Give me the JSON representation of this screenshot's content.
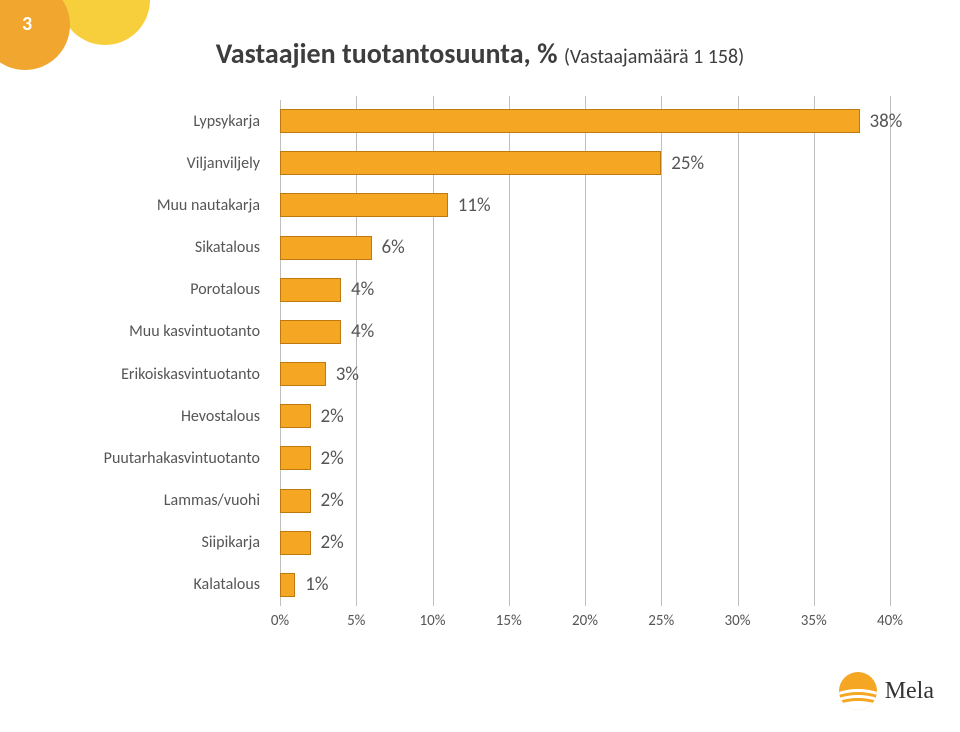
{
  "page_number": "3",
  "title_main": "Vastaajien tuotantosuunta, % ",
  "title_sub": "(Vastaajamäärä 1 158)",
  "chart": {
    "type": "bar",
    "orientation": "horizontal",
    "bar_fill": "#f5a623",
    "bar_border": "#be7a0e",
    "grid_color": "#bfbfbf",
    "label_color": "#555555",
    "value_color": "#555555",
    "label_fontsize": 16,
    "value_fontsize": 19,
    "tick_fontsize": 15,
    "xlim": [
      0,
      40
    ],
    "xtick_step": 5,
    "xtick_labels": [
      "0%",
      "5%",
      "10%",
      "15%",
      "20%",
      "25%",
      "30%",
      "35%",
      "40%"
    ],
    "categories": [
      {
        "label": "Lypsykarja",
        "value": 38,
        "value_label": "38%"
      },
      {
        "label": "Viljanviljely",
        "value": 25,
        "value_label": "25%"
      },
      {
        "label": "Muu nautakarja",
        "value": 11,
        "value_label": "11%"
      },
      {
        "label": "Sikatalous",
        "value": 6,
        "value_label": "6%"
      },
      {
        "label": "Porotalous",
        "value": 4,
        "value_label": "4%"
      },
      {
        "label": "Muu kasvintuotanto",
        "value": 4,
        "value_label": "4%"
      },
      {
        "label": "Erikoiskasvintuotanto",
        "value": 3,
        "value_label": "3%"
      },
      {
        "label": "Hevostalous",
        "value": 2,
        "value_label": "2%"
      },
      {
        "label": "Puutarhakasvintuotanto",
        "value": 2,
        "value_label": "2%"
      },
      {
        "label": "Lammas/vuohi",
        "value": 2,
        "value_label": "2%"
      },
      {
        "label": "Siipikarja",
        "value": 2,
        "value_label": "2%"
      },
      {
        "label": "Kalatalous",
        "value": 1,
        "value_label": "1%"
      }
    ]
  },
  "logo": {
    "text": "Mela",
    "sun_color": "#f5a623",
    "stripe_color": "#ffffff"
  },
  "deco": {
    "circle1_color": "#f0a62f",
    "circle2_color": "#f7cf3c"
  }
}
